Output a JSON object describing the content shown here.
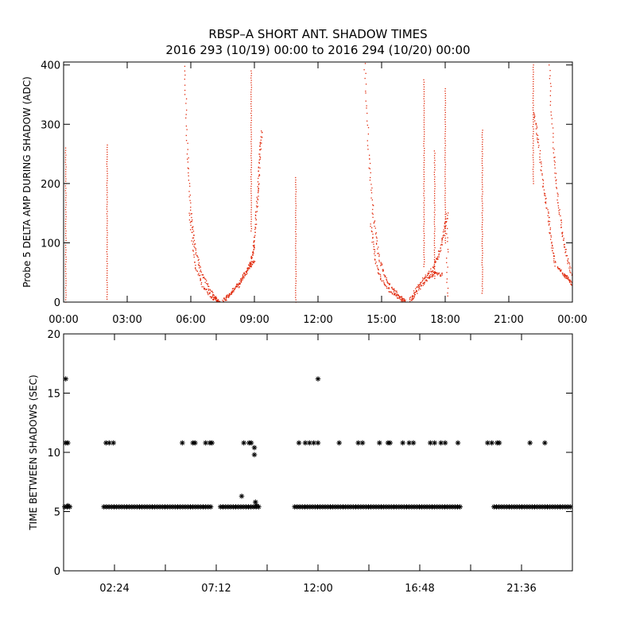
{
  "title_line1": "RBSP–A SHORT ANT. SHADOW TIMES",
  "title_line2": "2016 293 (10/19) 00:00 to 2016 294 (10/20) 00:00",
  "colors": {
    "points": "#e0280a",
    "axes": "#000000"
  },
  "chart_data": [
    {
      "type": "scatter",
      "ylabel": "Probe 5 DELTA AMP DURING SHADOW (ADC)",
      "xlabel": "",
      "x_unit": "hours",
      "xlim": [
        0,
        24
      ],
      "ylim": [
        0,
        405
      ],
      "x_tick_values": [
        0,
        3,
        6,
        9,
        12,
        15,
        18,
        21,
        24
      ],
      "x_tick_labels": [
        "00:00",
        "03:00",
        "06:00",
        "09:00",
        "12:00",
        "15:00",
        "18:00",
        "21:00",
        "00:00"
      ],
      "y_tick_values": [
        0,
        100,
        200,
        300,
        400
      ],
      "y_tick_labels": [
        "0",
        "100",
        "200",
        "300",
        "400"
      ],
      "marker": "dot",
      "point_color": "#e0280a",
      "segments": [
        {
          "type": "vline",
          "x": 0.1,
          "y0": 0,
          "y1": 260
        },
        {
          "type": "vline",
          "x": 2.05,
          "y0": 5,
          "y1": 265
        },
        {
          "type": "curve",
          "points": [
            [
              5.7,
              400
            ],
            [
              5.85,
              250
            ],
            [
              6.0,
              150
            ],
            [
              6.2,
              90
            ],
            [
              6.5,
              50
            ],
            [
              6.9,
              20
            ],
            [
              7.2,
              5
            ],
            [
              7.35,
              0
            ]
          ]
        },
        {
          "type": "curve",
          "points": [
            [
              5.95,
              150
            ],
            [
              6.2,
              60
            ],
            [
              6.6,
              25
            ],
            [
              7.0,
              8
            ],
            [
              7.3,
              2
            ]
          ]
        },
        {
          "type": "curve",
          "points": [
            [
              7.5,
              2
            ],
            [
              7.9,
              15
            ],
            [
              8.3,
              30
            ],
            [
              8.7,
              55
            ],
            [
              8.9,
              80
            ],
            [
              9.0,
              100
            ],
            [
              9.1,
              150
            ],
            [
              9.2,
              200
            ],
            [
              9.25,
              250
            ],
            [
              9.35,
              290
            ]
          ]
        },
        {
          "type": "curve",
          "points": [
            [
              7.55,
              0
            ],
            [
              8.0,
              20
            ],
            [
              8.4,
              40
            ],
            [
              8.8,
              60
            ],
            [
              9.0,
              70
            ]
          ]
        },
        {
          "type": "vline",
          "x": 8.85,
          "y0": 120,
          "y1": 390
        },
        {
          "type": "vline",
          "x": 10.95,
          "y0": 0,
          "y1": 210
        },
        {
          "type": "curve",
          "points": [
            [
              14.2,
              400
            ],
            [
              14.4,
              250
            ],
            [
              14.6,
              150
            ],
            [
              14.85,
              80
            ],
            [
              15.2,
              40
            ],
            [
              15.6,
              18
            ],
            [
              15.9,
              8
            ],
            [
              16.15,
              0
            ]
          ]
        },
        {
          "type": "curve",
          "points": [
            [
              14.5,
              130
            ],
            [
              14.7,
              70
            ],
            [
              15.0,
              35
            ],
            [
              15.5,
              15
            ],
            [
              16.0,
              3
            ]
          ]
        },
        {
          "type": "curve",
          "points": [
            [
              16.3,
              0
            ],
            [
              16.6,
              20
            ],
            [
              17.0,
              40
            ],
            [
              17.4,
              55
            ],
            [
              17.7,
              80
            ],
            [
              17.9,
              110
            ],
            [
              18.1,
              150
            ],
            [
              18.1,
              0
            ]
          ]
        },
        {
          "type": "curve",
          "points": [
            [
              16.4,
              3
            ],
            [
              16.8,
              25
            ],
            [
              17.2,
              40
            ],
            [
              17.5,
              50
            ],
            [
              17.9,
              45
            ]
          ]
        },
        {
          "type": "vline",
          "x": 17.0,
          "y0": 60,
          "y1": 375
        },
        {
          "type": "vline",
          "x": 17.5,
          "y0": 40,
          "y1": 255
        },
        {
          "type": "vline",
          "x": 18.0,
          "y0": 100,
          "y1": 360
        },
        {
          "type": "vline",
          "x": 19.75,
          "y0": 15,
          "y1": 290
        },
        {
          "type": "vline",
          "x": 22.15,
          "y0": 200,
          "y1": 400
        },
        {
          "type": "curve",
          "points": [
            [
              22.2,
              320
            ],
            [
              22.4,
              270
            ],
            [
              22.6,
              200
            ],
            [
              22.85,
              150
            ],
            [
              23.0,
              100
            ],
            [
              23.2,
              60
            ]
          ]
        },
        {
          "type": "curve",
          "points": [
            [
              22.9,
              400
            ],
            [
              23.1,
              260
            ],
            [
              23.3,
              180
            ],
            [
              23.5,
              120
            ],
            [
              23.7,
              80
            ],
            [
              24.0,
              40
            ]
          ]
        },
        {
          "type": "curve",
          "points": [
            [
              23.3,
              60
            ],
            [
              23.6,
              45
            ],
            [
              23.8,
              40
            ],
            [
              24.0,
              30
            ]
          ]
        }
      ]
    },
    {
      "type": "scatter",
      "ylabel": "TIME BETWEEN SHADOWS (SEC)",
      "xlabel": "",
      "x_unit": "hours",
      "xlim": [
        0,
        24
      ],
      "ylim": [
        0,
        20
      ],
      "x_tick_values": [
        0,
        2.4,
        4.8,
        7.2,
        9.6,
        12,
        14.4,
        16.8,
        19.2,
        21.6,
        24
      ],
      "x_tick_labels": [
        "",
        "02:24",
        "",
        "07:12",
        "",
        "12:00",
        "",
        "16:48",
        "",
        "21:36",
        ""
      ],
      "y_tick_values": [
        0,
        5,
        10,
        15,
        20
      ],
      "y_tick_labels": [
        "0",
        "5",
        "10",
        "15",
        "20"
      ],
      "marker": "asterisk",
      "point_color": "#000000",
      "baseline_value": 5.4,
      "baseline_runs": [
        [
          0.05,
          0.3
        ],
        [
          1.9,
          7.0
        ],
        [
          7.4,
          9.2
        ],
        [
          10.9,
          18.8
        ],
        [
          20.3,
          24.0
        ]
      ],
      "points": [
        [
          0.1,
          16.2
        ],
        [
          0.1,
          10.8
        ],
        [
          0.2,
          10.8
        ],
        [
          0.2,
          5.5
        ],
        [
          2.0,
          10.8
        ],
        [
          2.15,
          10.8
        ],
        [
          2.35,
          10.8
        ],
        [
          5.6,
          10.8
        ],
        [
          6.1,
          10.8
        ],
        [
          6.2,
          10.8
        ],
        [
          6.7,
          10.8
        ],
        [
          6.9,
          10.8
        ],
        [
          7.0,
          10.8
        ],
        [
          8.4,
          6.3
        ],
        [
          8.5,
          10.8
        ],
        [
          8.75,
          10.8
        ],
        [
          8.85,
          10.8
        ],
        [
          9.0,
          10.4
        ],
        [
          9.0,
          9.8
        ],
        [
          9.05,
          5.8
        ],
        [
          9.1,
          5.5
        ],
        [
          11.1,
          10.8
        ],
        [
          11.4,
          10.8
        ],
        [
          11.6,
          10.8
        ],
        [
          11.8,
          10.8
        ],
        [
          12.0,
          16.2
        ],
        [
          12.0,
          10.8
        ],
        [
          13.0,
          10.8
        ],
        [
          13.9,
          10.8
        ],
        [
          14.1,
          10.8
        ],
        [
          14.9,
          10.8
        ],
        [
          15.3,
          10.8
        ],
        [
          15.4,
          10.8
        ],
        [
          16.0,
          10.8
        ],
        [
          16.3,
          10.8
        ],
        [
          16.5,
          10.8
        ],
        [
          17.3,
          10.8
        ],
        [
          17.5,
          10.8
        ],
        [
          17.8,
          10.8
        ],
        [
          18.0,
          10.8
        ],
        [
          18.6,
          10.8
        ],
        [
          20.0,
          10.8
        ],
        [
          20.2,
          10.8
        ],
        [
          20.45,
          10.8
        ],
        [
          20.55,
          10.8
        ],
        [
          22.0,
          10.8
        ],
        [
          22.7,
          10.8
        ]
      ]
    }
  ]
}
